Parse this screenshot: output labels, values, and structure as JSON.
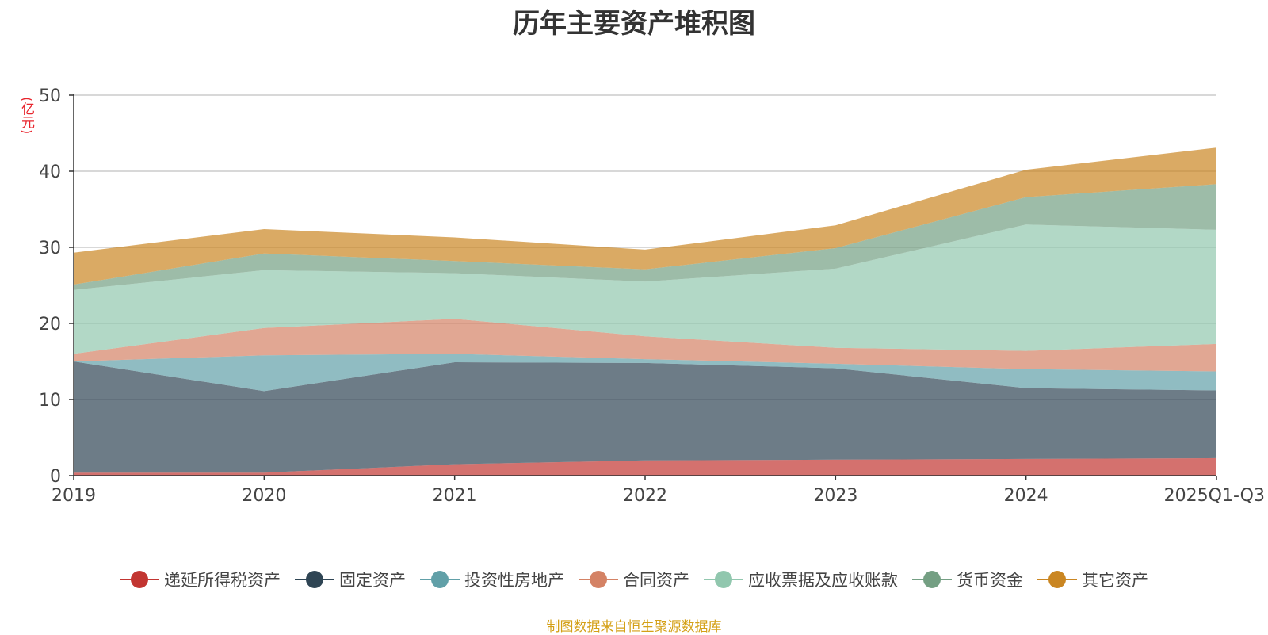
{
  "chart_data": {
    "type": "area",
    "stacked": true,
    "title": "历年主要资产堆积图",
    "ylabel": "(亿元)",
    "ylim": [
      0,
      50
    ],
    "yticks": [
      0,
      10,
      20,
      30,
      40,
      50
    ],
    "categories": [
      "2019",
      "2020",
      "2021",
      "2022",
      "2023",
      "2024",
      "2025Q1-Q3"
    ],
    "series": [
      {
        "name": "递延所得税资产",
        "color": "#c23531",
        "values": [
          0.4,
          0.4,
          1.5,
          2.0,
          2.1,
          2.2,
          2.3
        ]
      },
      {
        "name": "固定资产",
        "color": "#2f4554",
        "values": [
          14.6,
          10.7,
          13.4,
          12.8,
          12.0,
          9.3,
          8.9
        ]
      },
      {
        "name": "投资性房地产",
        "color": "#61a0a8",
        "values": [
          0.0,
          4.7,
          1.1,
          0.5,
          0.6,
          2.5,
          2.5
        ]
      },
      {
        "name": "合同资产",
        "color": "#d48265",
        "values": [
          1.0,
          3.6,
          4.6,
          3.0,
          2.1,
          2.4,
          3.6
        ]
      },
      {
        "name": "应收票据及应收账款",
        "color": "#91c7ae",
        "values": [
          8.4,
          7.6,
          6.0,
          7.2,
          10.4,
          16.6,
          15.0
        ]
      },
      {
        "name": "货币资金",
        "color": "#749f83",
        "values": [
          0.7,
          2.2,
          1.6,
          1.6,
          2.7,
          3.6,
          6.0
        ]
      },
      {
        "name": "其它资产",
        "color": "#ca8622",
        "values": [
          4.2,
          3.2,
          3.1,
          2.6,
          3.0,
          3.6,
          4.8
        ]
      }
    ]
  },
  "footer": {
    "source": "制图数据来自恒生聚源数据库"
  }
}
